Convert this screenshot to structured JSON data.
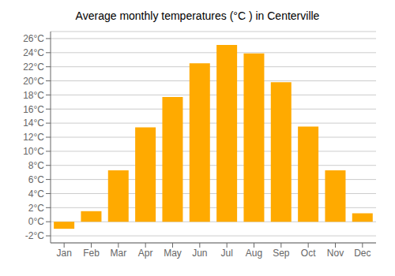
{
  "chart_data": {
    "type": "bar",
    "title": "Average monthly temperatures (°C ) in Centerville",
    "categories": [
      "Jan",
      "Feb",
      "Mar",
      "Apr",
      "May",
      "Jun",
      "Jul",
      "Aug",
      "Sep",
      "Oct",
      "Nov",
      "Dec"
    ],
    "values": [
      -1.0,
      1.5,
      7.3,
      13.4,
      17.7,
      22.5,
      25.1,
      23.9,
      19.8,
      13.5,
      7.3,
      1.2
    ],
    "color": "#FFAA00",
    "ylim": [
      -3,
      27
    ],
    "yticks": [
      {
        "value": -2,
        "label": "-2°C"
      },
      {
        "value": 0,
        "label": "0°C"
      },
      {
        "value": 2,
        "label": "2°C"
      },
      {
        "value": 4,
        "label": "4°C"
      },
      {
        "value": 6,
        "label": "6°C"
      },
      {
        "value": 8,
        "label": "8°C"
      },
      {
        "value": 10,
        "label": "10°C"
      },
      {
        "value": 12,
        "label": "12°C"
      },
      {
        "value": 14,
        "label": "14°C"
      },
      {
        "value": 16,
        "label": "16°C"
      },
      {
        "value": 18,
        "label": "18°C"
      },
      {
        "value": 20,
        "label": "20°C"
      },
      {
        "value": 22,
        "label": "22°C"
      },
      {
        "value": 24,
        "label": "24°C"
      },
      {
        "value": 26,
        "label": "26°C"
      }
    ],
    "grid": true
  }
}
